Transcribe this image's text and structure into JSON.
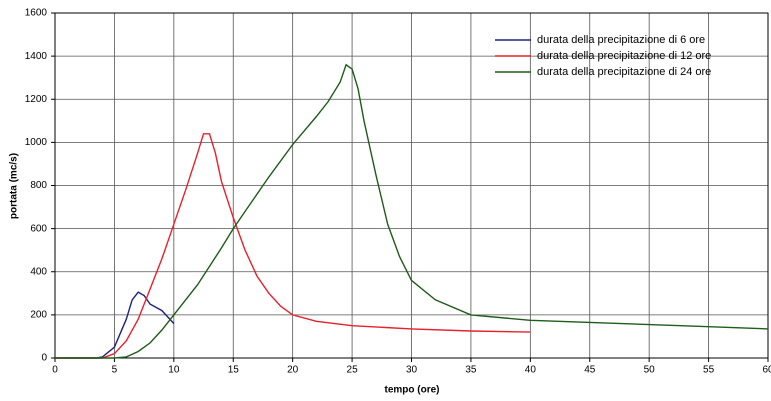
{
  "chart_data": {
    "type": "line",
    "xlabel": "tempo (ore)",
    "ylabel": "portata (mc/s)",
    "xlim": [
      0,
      60
    ],
    "xticks": [
      0,
      5,
      10,
      15,
      20,
      25,
      30,
      35,
      40,
      45,
      50,
      55,
      60
    ],
    "ylim": [
      0,
      1600
    ],
    "yticks": [
      0,
      200,
      400,
      600,
      800,
      1000,
      1200,
      1400,
      1600
    ],
    "grid": true,
    "legend": "upper right",
    "series": [
      {
        "name": "durata della precipitazione di 6 ore",
        "color": "#1a237e",
        "x": [
          0,
          3.5,
          4,
          5,
          6,
          6.5,
          7,
          7.5,
          8,
          9,
          10
        ],
        "values": [
          0,
          0,
          5,
          50,
          180,
          270,
          305,
          290,
          250,
          220,
          160
        ]
      },
      {
        "name": "durata della precipitazione di 12 ore",
        "color": "#e8202a",
        "x": [
          0,
          4,
          5,
          6,
          7,
          8,
          9,
          10,
          11,
          12,
          12.5,
          13,
          13.5,
          14,
          15,
          16,
          17,
          18,
          19,
          20,
          22,
          25,
          30,
          35,
          40
        ],
        "values": [
          0,
          0,
          20,
          80,
          180,
          320,
          460,
          620,
          780,
          950,
          1040,
          1040,
          950,
          820,
          650,
          500,
          380,
          300,
          240,
          200,
          170,
          150,
          135,
          125,
          120
        ]
      },
      {
        "name": "durata della precipitazione di 24 ore",
        "color": "#1e5c1a",
        "x": [
          0,
          5,
          6,
          7,
          8,
          9,
          10,
          12,
          14,
          15,
          16,
          18,
          20,
          22,
          23,
          24,
          24.5,
          25,
          25.5,
          26,
          27,
          28,
          29,
          30,
          32,
          35,
          40,
          45,
          50,
          55,
          60
        ],
        "values": [
          0,
          0,
          5,
          30,
          70,
          130,
          200,
          340,
          510,
          600,
          680,
          840,
          990,
          1120,
          1190,
          1280,
          1360,
          1340,
          1250,
          1100,
          850,
          620,
          470,
          360,
          270,
          200,
          175,
          165,
          155,
          145,
          135
        ]
      }
    ]
  }
}
